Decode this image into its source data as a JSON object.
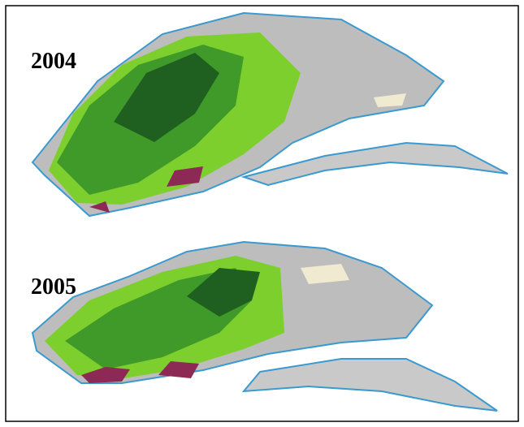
{
  "panels": [
    {
      "label": "2004"
    },
    {
      "label": "2005"
    }
  ]
}
